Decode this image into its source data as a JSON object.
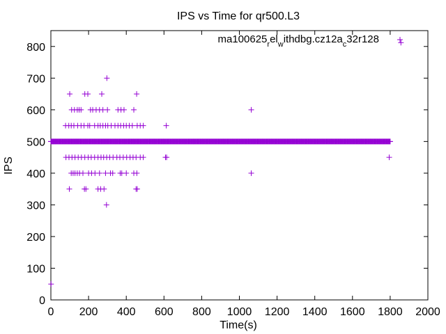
{
  "chart_data": {
    "type": "scatter",
    "title": "IPS vs Time for qr500.L3",
    "xlabel": "Time(s)",
    "ylabel": "IPS",
    "xlim": [
      0,
      2000
    ],
    "ylim": [
      0,
      850
    ],
    "xticks": [
      0,
      200,
      400,
      600,
      800,
      1000,
      1200,
      1400,
      1600,
      1800,
      2000
    ],
    "yticks": [
      0,
      100,
      200,
      300,
      400,
      500,
      600,
      700,
      800
    ],
    "grid": false,
    "legend": {
      "placement": "top-right",
      "base1": "ma100625",
      "sub1": "r",
      "base2": "el",
      "sub2": "w",
      "base3": "ithdbg.cz12a",
      "sub3": "c",
      "base4": "32r128"
    },
    "series": [
      {
        "color": "#9400d3",
        "marker": "plus",
        "baseline_value": 500,
        "baseline_range": [
          0,
          1800
        ],
        "points": [
          [
            1,
            50
          ],
          [
            1857,
            812
          ],
          [
            297,
            700
          ],
          [
            100,
            650
          ],
          [
            180,
            650
          ],
          [
            196,
            650
          ],
          [
            270,
            650
          ],
          [
            455,
            650
          ],
          [
            110,
            600
          ],
          [
            125,
            600
          ],
          [
            140,
            600
          ],
          [
            150,
            600
          ],
          [
            160,
            600
          ],
          [
            210,
            600
          ],
          [
            222,
            600
          ],
          [
            240,
            600
          ],
          [
            258,
            600
          ],
          [
            276,
            600
          ],
          [
            300,
            600
          ],
          [
            356,
            600
          ],
          [
            372,
            600
          ],
          [
            388,
            600
          ],
          [
            440,
            600
          ],
          [
            1063,
            600
          ],
          [
            78,
            550
          ],
          [
            95,
            550
          ],
          [
            108,
            550
          ],
          [
            122,
            550
          ],
          [
            142,
            550
          ],
          [
            160,
            550
          ],
          [
            176,
            550
          ],
          [
            196,
            550
          ],
          [
            206,
            550
          ],
          [
            232,
            550
          ],
          [
            250,
            550
          ],
          [
            262,
            550
          ],
          [
            276,
            550
          ],
          [
            290,
            550
          ],
          [
            302,
            550
          ],
          [
            320,
            550
          ],
          [
            340,
            550
          ],
          [
            356,
            550
          ],
          [
            370,
            550
          ],
          [
            386,
            550
          ],
          [
            400,
            550
          ],
          [
            416,
            550
          ],
          [
            432,
            550
          ],
          [
            458,
            550
          ],
          [
            474,
            550
          ],
          [
            490,
            550
          ],
          [
            612,
            550
          ],
          [
            80,
            450
          ],
          [
            96,
            450
          ],
          [
            112,
            450
          ],
          [
            128,
            450
          ],
          [
            145,
            450
          ],
          [
            162,
            450
          ],
          [
            180,
            450
          ],
          [
            198,
            450
          ],
          [
            214,
            450
          ],
          [
            232,
            450
          ],
          [
            250,
            450
          ],
          [
            266,
            450
          ],
          [
            280,
            450
          ],
          [
            296,
            450
          ],
          [
            312,
            450
          ],
          [
            330,
            450
          ],
          [
            350,
            450
          ],
          [
            366,
            450
          ],
          [
            384,
            450
          ],
          [
            402,
            450
          ],
          [
            420,
            450
          ],
          [
            436,
            450
          ],
          [
            452,
            450
          ],
          [
            474,
            450
          ],
          [
            490,
            450
          ],
          [
            608,
            450
          ],
          [
            614,
            450
          ],
          [
            1795,
            450
          ],
          [
            108,
            400
          ],
          [
            118,
            400
          ],
          [
            128,
            400
          ],
          [
            140,
            400
          ],
          [
            152,
            400
          ],
          [
            170,
            400
          ],
          [
            200,
            400
          ],
          [
            216,
            400
          ],
          [
            234,
            400
          ],
          [
            258,
            400
          ],
          [
            290,
            400
          ],
          [
            316,
            400
          ],
          [
            328,
            400
          ],
          [
            368,
            400
          ],
          [
            376,
            400
          ],
          [
            400,
            400
          ],
          [
            440,
            400
          ],
          [
            456,
            400
          ],
          [
            1063,
            400
          ],
          [
            98,
            350
          ],
          [
            178,
            350
          ],
          [
            186,
            350
          ],
          [
            250,
            350
          ],
          [
            264,
            350
          ],
          [
            282,
            350
          ],
          [
            452,
            350
          ],
          [
            458,
            350
          ],
          [
            295,
            300
          ]
        ]
      }
    ]
  }
}
